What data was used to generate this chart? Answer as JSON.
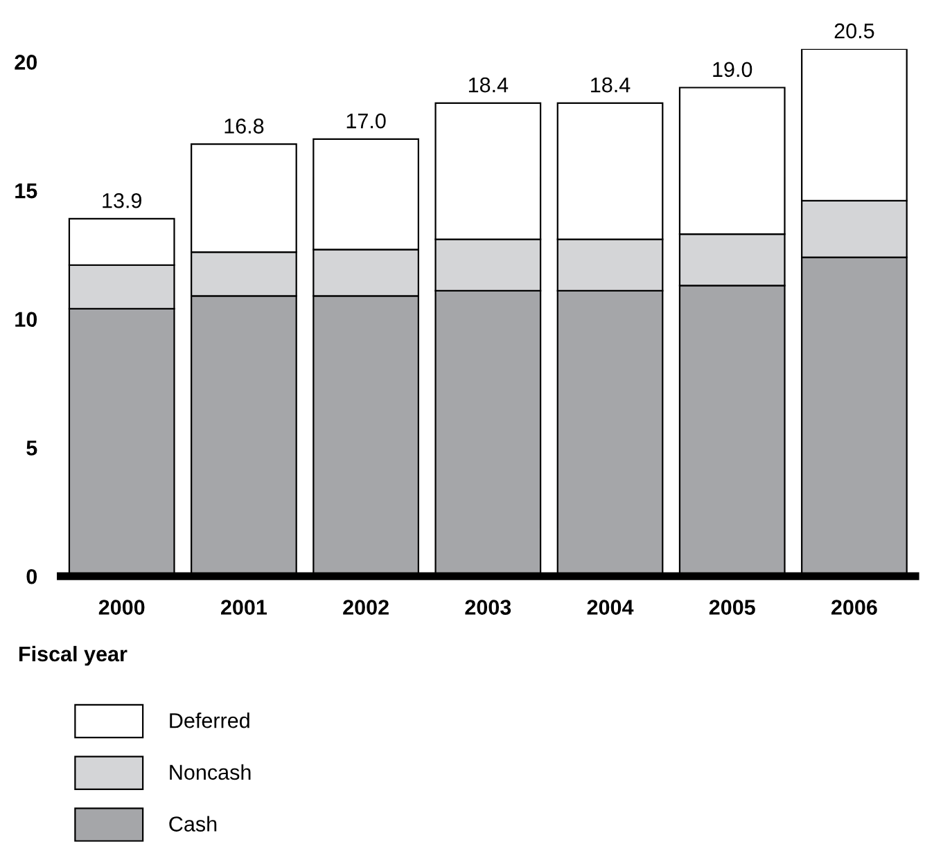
{
  "chart_data": {
    "type": "bar",
    "stacked": true,
    "xlabel": "Fiscal year",
    "categories": [
      "2000",
      "2001",
      "2002",
      "2003",
      "2004",
      "2005",
      "2006"
    ],
    "series": [
      {
        "name": "Cash",
        "color": "#a5a6a9",
        "values": [
          10.4,
          10.9,
          10.9,
          11.1,
          11.1,
          11.3,
          12.4
        ]
      },
      {
        "name": "Noncash",
        "color": "#d4d5d7",
        "values": [
          1.7,
          1.7,
          1.8,
          2.0,
          2.0,
          2.0,
          2.2
        ]
      },
      {
        "name": "Deferred",
        "color": "#ffffff",
        "values": [
          1.8,
          4.2,
          4.3,
          5.3,
          5.3,
          5.7,
          5.9
        ]
      }
    ],
    "totals": [
      "13.9",
      "16.8",
      "17.0",
      "18.4",
      "18.4",
      "19.0",
      "20.5"
    ],
    "ylim": [
      0,
      20.5
    ],
    "yticks": [
      0,
      5,
      10,
      15,
      20
    ],
    "grid": false,
    "legend": "bottom"
  }
}
